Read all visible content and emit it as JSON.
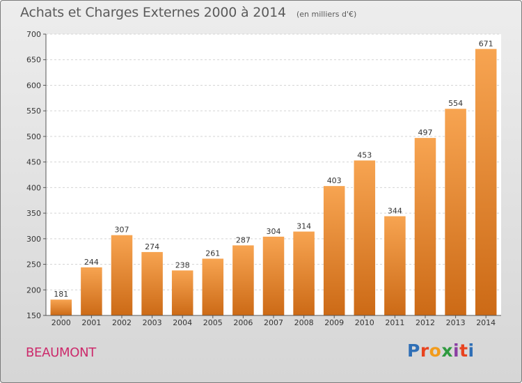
{
  "header": {
    "title": "Achats et Charges Externes 2000 à 2014",
    "subtitle": "(en milliers d'€)"
  },
  "footer": {
    "location": "BEAUMONT",
    "logo": "Proxiti",
    "logo_colors": [
      "#2f6fb6",
      "#e8431f",
      "#f29b1b",
      "#2e9a3f",
      "#8a3fa3",
      "#e8431f",
      "#2f6fb6"
    ]
  },
  "chart_data": {
    "type": "bar",
    "categories": [
      "2000",
      "2001",
      "2002",
      "2003",
      "2004",
      "2005",
      "2006",
      "2007",
      "2008",
      "2009",
      "2010",
      "2011",
      "2012",
      "2013",
      "2014"
    ],
    "values": [
      181,
      244,
      307,
      274,
      238,
      261,
      287,
      304,
      314,
      403,
      453,
      344,
      497,
      554,
      671
    ],
    "title": "Achats et Charges Externes 2000 à 2014",
    "xlabel": "",
    "ylabel": "",
    "ylim": [
      150,
      700
    ],
    "yticks": [
      150,
      200,
      250,
      300,
      350,
      400,
      450,
      500,
      550,
      600,
      650,
      700
    ],
    "grid": true,
    "bar_color_light": "#f7a451",
    "bar_color_dark": "#cc6a16",
    "plot_background": "#ffffff"
  }
}
